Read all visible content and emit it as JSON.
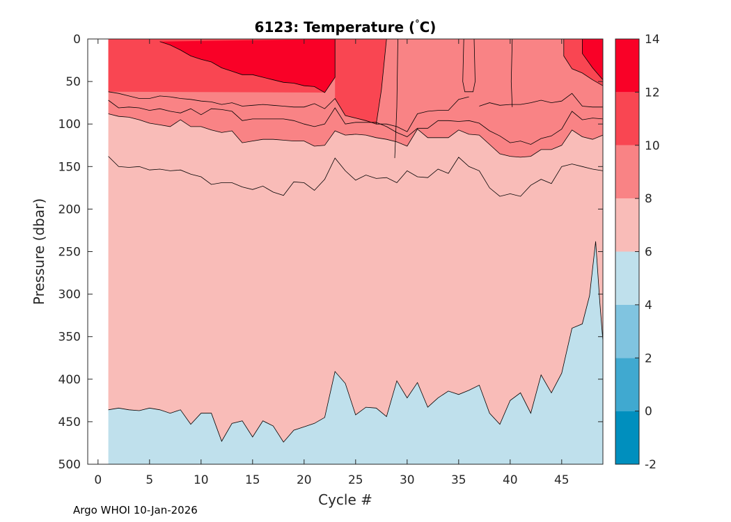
{
  "chart_data": {
    "type": "contourf",
    "title_main": "6123:  Temperature (",
    "title_degree": "°",
    "title_unit": "C)",
    "xlabel": "Cycle #",
    "ylabel": "Pressure (dbar)",
    "xlim": [
      -1,
      49
    ],
    "ylim": [
      0,
      500
    ],
    "y_reversed": true,
    "xticks": [
      0,
      5,
      10,
      15,
      20,
      25,
      30,
      35,
      40,
      45
    ],
    "yticks": [
      0,
      50,
      100,
      150,
      200,
      250,
      300,
      350,
      400,
      450,
      500
    ],
    "data_x_range": [
      1,
      49
    ],
    "colorbar": {
      "levels": [
        -2,
        0,
        2,
        4,
        6,
        8,
        10,
        12,
        14
      ],
      "colors": [
        "#008fbe",
        "#40a9d0",
        "#80c4e0",
        "#bfe0ec",
        "#f9bcb8",
        "#f98385",
        "#f94652",
        "#f90127"
      ]
    },
    "isotherm_5": [
      [
        1,
        436
      ],
      [
        2,
        434
      ],
      [
        3,
        436
      ],
      [
        4,
        437
      ],
      [
        5,
        434
      ],
      [
        6,
        436
      ],
      [
        7,
        440
      ],
      [
        8,
        436
      ],
      [
        9,
        453
      ],
      [
        10,
        440
      ],
      [
        11,
        440
      ],
      [
        12,
        473
      ],
      [
        13,
        452
      ],
      [
        14,
        449
      ],
      [
        15,
        468
      ],
      [
        16,
        449
      ],
      [
        17,
        455
      ],
      [
        18,
        474
      ],
      [
        19,
        460
      ],
      [
        20,
        456
      ],
      [
        21,
        452
      ],
      [
        22,
        445
      ],
      [
        23,
        391
      ],
      [
        24,
        405
      ],
      [
        25,
        442
      ],
      [
        26,
        433
      ],
      [
        27,
        434
      ],
      [
        28,
        444
      ],
      [
        29,
        402
      ],
      [
        30,
        422
      ],
      [
        31,
        404
      ],
      [
        32,
        433
      ],
      [
        33,
        422
      ],
      [
        34,
        414
      ],
      [
        35,
        418
      ],
      [
        36,
        413
      ],
      [
        37,
        407
      ],
      [
        38,
        440
      ],
      [
        39,
        453
      ],
      [
        40,
        425
      ],
      [
        41,
        416
      ],
      [
        42,
        440
      ],
      [
        43,
        395
      ],
      [
        44,
        416
      ],
      [
        45,
        393
      ],
      [
        46,
        340
      ],
      [
        47,
        335
      ],
      [
        47.7,
        302
      ],
      [
        48.3,
        238
      ],
      [
        48.7,
        310
      ],
      [
        49,
        355
      ]
    ],
    "isotherm_7": [
      [
        1,
        138
      ],
      [
        2,
        150
      ],
      [
        3,
        151
      ],
      [
        4,
        150
      ],
      [
        5,
        154
      ],
      [
        6,
        153
      ],
      [
        7,
        155
      ],
      [
        8,
        154
      ],
      [
        9,
        159
      ],
      [
        10,
        162
      ],
      [
        11,
        171
      ],
      [
        12,
        169
      ],
      [
        13,
        169
      ],
      [
        14,
        174
      ],
      [
        15,
        177
      ],
      [
        16,
        173
      ],
      [
        17,
        180
      ],
      [
        18,
        184
      ],
      [
        19,
        168
      ],
      [
        20,
        169
      ],
      [
        21,
        178
      ],
      [
        22,
        165
      ],
      [
        23,
        140
      ],
      [
        24,
        155
      ],
      [
        25,
        166
      ],
      [
        26,
        160
      ],
      [
        27,
        164
      ],
      [
        28,
        163
      ],
      [
        29,
        169
      ],
      [
        30,
        155
      ],
      [
        31,
        162
      ],
      [
        32,
        163
      ],
      [
        33,
        153
      ],
      [
        34,
        158
      ],
      [
        35,
        139
      ],
      [
        36,
        150
      ],
      [
        37,
        155
      ],
      [
        38,
        175
      ],
      [
        39,
        185
      ],
      [
        40,
        182
      ],
      [
        41,
        185
      ],
      [
        42,
        172
      ],
      [
        43,
        165
      ],
      [
        44,
        170
      ],
      [
        45,
        150
      ],
      [
        46,
        147
      ],
      [
        47,
        150
      ],
      [
        48,
        153
      ],
      [
        49,
        155
      ]
    ],
    "isotherm_8": [
      [
        1,
        88
      ],
      [
        2,
        91
      ],
      [
        3,
        92
      ],
      [
        4,
        95
      ],
      [
        5,
        99
      ],
      [
        6,
        101
      ],
      [
        7,
        103
      ],
      [
        8,
        95
      ],
      [
        9,
        103
      ],
      [
        10,
        103
      ],
      [
        11,
        107
      ],
      [
        12,
        110
      ],
      [
        13,
        108
      ],
      [
        14,
        122
      ],
      [
        15,
        120
      ],
      [
        16,
        118
      ],
      [
        17,
        118
      ],
      [
        18,
        119
      ],
      [
        19,
        120
      ],
      [
        20,
        120
      ],
      [
        21,
        126
      ],
      [
        22,
        125
      ],
      [
        23,
        108
      ],
      [
        24,
        113
      ],
      [
        25,
        112
      ],
      [
        26,
        113
      ],
      [
        27,
        116
      ],
      [
        28,
        118
      ],
      [
        29,
        121
      ],
      [
        30,
        126
      ],
      [
        31,
        106
      ],
      [
        32,
        116
      ],
      [
        33,
        116
      ],
      [
        34,
        116
      ],
      [
        35,
        107
      ],
      [
        36,
        112
      ],
      [
        37,
        113
      ],
      [
        38,
        124
      ],
      [
        39,
        135
      ],
      [
        40,
        138
      ],
      [
        41,
        139
      ],
      [
        42,
        138
      ],
      [
        43,
        130
      ],
      [
        44,
        130
      ],
      [
        45,
        125
      ],
      [
        46,
        107
      ],
      [
        47,
        115
      ],
      [
        48,
        118
      ],
      [
        49,
        113
      ]
    ],
    "isotherm_9": [
      [
        1,
        72
      ],
      [
        2,
        81
      ],
      [
        3,
        80
      ],
      [
        4,
        81
      ],
      [
        5,
        84
      ],
      [
        6,
        82
      ],
      [
        7,
        85
      ],
      [
        8,
        87
      ],
      [
        9,
        82
      ],
      [
        10,
        89
      ],
      [
        11,
        82
      ],
      [
        12,
        83
      ],
      [
        13,
        85
      ],
      [
        14,
        96
      ],
      [
        15,
        94
      ],
      [
        16,
        94
      ],
      [
        17,
        94
      ],
      [
        18,
        94
      ],
      [
        19,
        96
      ],
      [
        20,
        100
      ],
      [
        21,
        103
      ],
      [
        22,
        100
      ],
      [
        23,
        81
      ],
      [
        24,
        100
      ],
      [
        25,
        98
      ],
      [
        26,
        98
      ],
      [
        27,
        98
      ],
      [
        28,
        103
      ],
      [
        29,
        110
      ],
      [
        30,
        115
      ],
      [
        31,
        105
      ],
      [
        32,
        105
      ],
      [
        33,
        96
      ],
      [
        34,
        96
      ],
      [
        35,
        97
      ],
      [
        36,
        96
      ],
      [
        37,
        99
      ],
      [
        38,
        108
      ],
      [
        39,
        114
      ],
      [
        40,
        122
      ],
      [
        41,
        120
      ],
      [
        42,
        124
      ],
      [
        43,
        117
      ],
      [
        44,
        114
      ],
      [
        45,
        106
      ],
      [
        46,
        85
      ],
      [
        47,
        95
      ],
      [
        48,
        93
      ],
      [
        49,
        94
      ]
    ],
    "isotherm_10_a": [
      [
        1,
        62
      ],
      [
        2,
        64
      ],
      [
        3,
        67
      ],
      [
        4,
        70
      ],
      [
        5,
        70
      ],
      [
        6,
        67
      ],
      [
        7,
        68
      ],
      [
        8,
        70
      ],
      [
        9,
        71
      ],
      [
        10,
        73
      ],
      [
        11,
        74
      ],
      [
        12,
        77
      ],
      [
        13,
        75
      ],
      [
        14,
        79
      ],
      [
        15,
        78
      ],
      [
        16,
        77
      ],
      [
        17,
        78
      ],
      [
        18,
        79
      ],
      [
        19,
        80
      ],
      [
        20,
        80
      ],
      [
        21,
        76
      ],
      [
        22,
        82
      ],
      [
        23,
        70
      ],
      [
        24,
        90
      ],
      [
        25,
        93
      ],
      [
        26,
        96
      ],
      [
        27,
        100
      ],
      [
        28,
        100
      ],
      [
        29,
        103
      ],
      [
        30,
        109
      ],
      [
        31,
        88
      ],
      [
        32,
        85
      ],
      [
        33,
        84
      ],
      [
        34,
        84
      ],
      [
        35,
        71
      ],
      [
        36,
        68
      ]
    ],
    "isotherm_10_b": [
      [
        37,
        79
      ],
      [
        38,
        75
      ],
      [
        39,
        78
      ],
      [
        40,
        77
      ],
      [
        41,
        77
      ],
      [
        42,
        75
      ],
      [
        43,
        72
      ],
      [
        44,
        75
      ],
      [
        45,
        73
      ],
      [
        46,
        64
      ],
      [
        47,
        79
      ],
      [
        48,
        80
      ],
      [
        49,
        80
      ]
    ],
    "isotherm_12_a": [
      [
        6,
        3
      ],
      [
        7,
        7
      ],
      [
        8,
        13
      ],
      [
        9,
        20
      ],
      [
        10,
        24
      ],
      [
        11,
        27
      ],
      [
        12,
        34
      ],
      [
        13,
        38
      ],
      [
        14,
        42
      ],
      [
        15,
        42
      ],
      [
        16,
        45
      ],
      [
        17,
        48
      ],
      [
        18,
        51
      ],
      [
        19,
        52
      ],
      [
        20,
        55
      ],
      [
        21,
        56
      ],
      [
        22,
        63
      ],
      [
        23,
        45
      ],
      [
        23,
        0
      ]
    ],
    "isotherm_12_b": [
      [
        47,
        0
      ],
      [
        47,
        17
      ],
      [
        48,
        34
      ],
      [
        49,
        48
      ]
    ],
    "isotherm_11_a": [
      [
        1,
        62
      ],
      [
        22,
        63
      ],
      [
        23,
        45
      ],
      [
        23,
        0
      ]
    ],
    "isotherm_11_b": [
      [
        28,
        0
      ],
      [
        27.5,
        60
      ],
      [
        27,
        100
      ]
    ],
    "isotherm_10_tongue": [
      [
        35.5,
        0
      ],
      [
        35.4,
        50
      ],
      [
        35.6,
        62
      ],
      [
        36.4,
        62
      ],
      [
        36.6,
        50
      ],
      [
        36.5,
        0
      ]
    ],
    "isotherm_10_left": [
      [
        29.1,
        0
      ],
      [
        29.0,
        80
      ],
      [
        28.8,
        140
      ]
    ],
    "isotherm_10_mid": [
      [
        40.2,
        0
      ],
      [
        40.1,
        50
      ],
      [
        40.2,
        80
      ]
    ],
    "isotherm_11_right": [
      [
        45.2,
        0
      ],
      [
        45.2,
        20
      ],
      [
        46,
        35
      ],
      [
        47,
        40
      ],
      [
        48,
        48
      ],
      [
        49,
        55
      ]
    ],
    "footer": "Argo WHOI 10-Jan-2026"
  }
}
